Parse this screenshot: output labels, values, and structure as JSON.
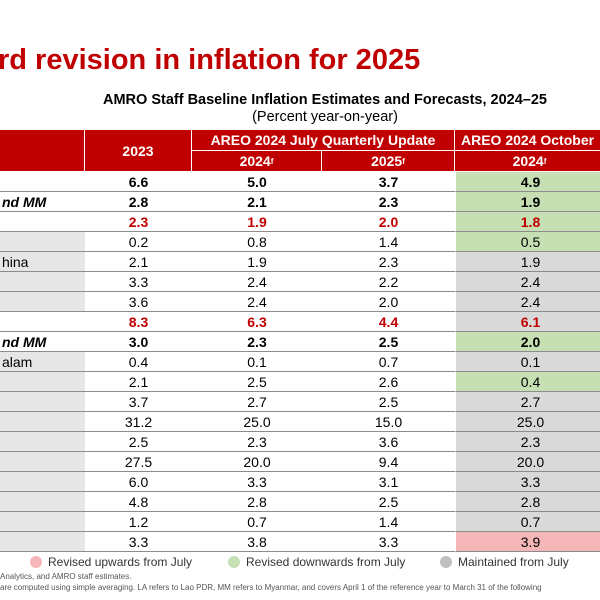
{
  "title": "rd revision in inflation for 2025",
  "table": {
    "title": "AMRO Staff Baseline Inflation Estimates and Forecasts, 2024–25",
    "subtitle": "(Percent year-on-year)",
    "header": {
      "y2023": "2023",
      "july": "AREO 2024 July Quarterly Update",
      "october": "AREO 2024 October",
      "july_2024": "2024",
      "july_2025": "2025",
      "oct_2024": "2024",
      "forecast_mark": "f"
    },
    "rows": [
      {
        "values": [
          "6.6",
          "5.0",
          "3.7",
          "4.9"
        ],
        "style": "bold",
        "fill": "#c6e0b4"
      },
      {
        "label": "nd MM",
        "values": [
          "2.8",
          "2.1",
          "2.3",
          "1.9"
        ],
        "style": "bold",
        "fill": "#c6e0b4"
      },
      {
        "values": [
          "2.3",
          "1.9",
          "2.0",
          "1.8"
        ],
        "style": "red",
        "fill": "#c6e0b4"
      },
      {
        "values": [
          "0.2",
          "0.8",
          "1.4",
          "0.5"
        ],
        "style": "normal",
        "fill": "#c6e0b4"
      },
      {
        "label": "hina",
        "values": [
          "2.1",
          "1.9",
          "2.3",
          "1.9"
        ],
        "style": "normal",
        "fill": "#d9d9d9"
      },
      {
        "values": [
          "3.3",
          "2.4",
          "2.2",
          "2.4"
        ],
        "style": "normal",
        "fill": "#d9d9d9"
      },
      {
        "values": [
          "3.6",
          "2.4",
          "2.0",
          "2.4"
        ],
        "style": "normal",
        "fill": "#d9d9d9"
      },
      {
        "values": [
          "8.3",
          "6.3",
          "4.4",
          "6.1"
        ],
        "style": "red",
        "fill": "#d9d9d9"
      },
      {
        "label": "nd MM",
        "values": [
          "3.0",
          "2.3",
          "2.5",
          "2.0"
        ],
        "style": "bold",
        "fill": "#c6e0b4"
      },
      {
        "label": "alam",
        "values": [
          "0.4",
          "0.1",
          "0.7",
          "0.1"
        ],
        "style": "normal",
        "fill": "#d9d9d9"
      },
      {
        "values": [
          "2.1",
          "2.5",
          "2.6",
          "0.4"
        ],
        "style": "normal",
        "fill": "#c6e0b4"
      },
      {
        "values": [
          "3.7",
          "2.7",
          "2.5",
          "2.7"
        ],
        "style": "normal",
        "fill": "#d9d9d9"
      },
      {
        "values": [
          "31.2",
          "25.0",
          "15.0",
          "25.0"
        ],
        "style": "normal",
        "fill": "#d9d9d9"
      },
      {
        "values": [
          "2.5",
          "2.3",
          "3.6",
          "2.3"
        ],
        "style": "normal",
        "fill": "#d9d9d9"
      },
      {
        "values": [
          "27.5",
          "20.0",
          "9.4",
          "20.0"
        ],
        "style": "normal",
        "fill": "#d9d9d9"
      },
      {
        "values": [
          "6.0",
          "3.3",
          "3.1",
          "3.3"
        ],
        "style": "normal",
        "fill": "#d9d9d9"
      },
      {
        "values": [
          "4.8",
          "2.8",
          "2.5",
          "2.8"
        ],
        "style": "normal",
        "fill": "#d9d9d9"
      },
      {
        "values": [
          "1.2",
          "0.7",
          "1.4",
          "0.7"
        ],
        "style": "normal",
        "fill": "#d9d9d9"
      },
      {
        "values": [
          "3.3",
          "3.8",
          "3.3",
          "3.9"
        ],
        "style": "normal",
        "fill": "#f4b6b6"
      }
    ]
  },
  "legend": [
    {
      "label": "Revised upwards from July",
      "color": "#f4b6b6"
    },
    {
      "label": "Revised downwards from July",
      "color": "#c6e0b4"
    },
    {
      "label": "Maintained from July",
      "color": "#bfbfbf"
    }
  ],
  "notes": [
    "Analytics, and AMRO staff estimates.",
    "are computed using simple averaging. LA refers to Lao PDR, MM refers to Myanmar, and covers April 1 of the reference year to March 31 of the following"
  ]
}
